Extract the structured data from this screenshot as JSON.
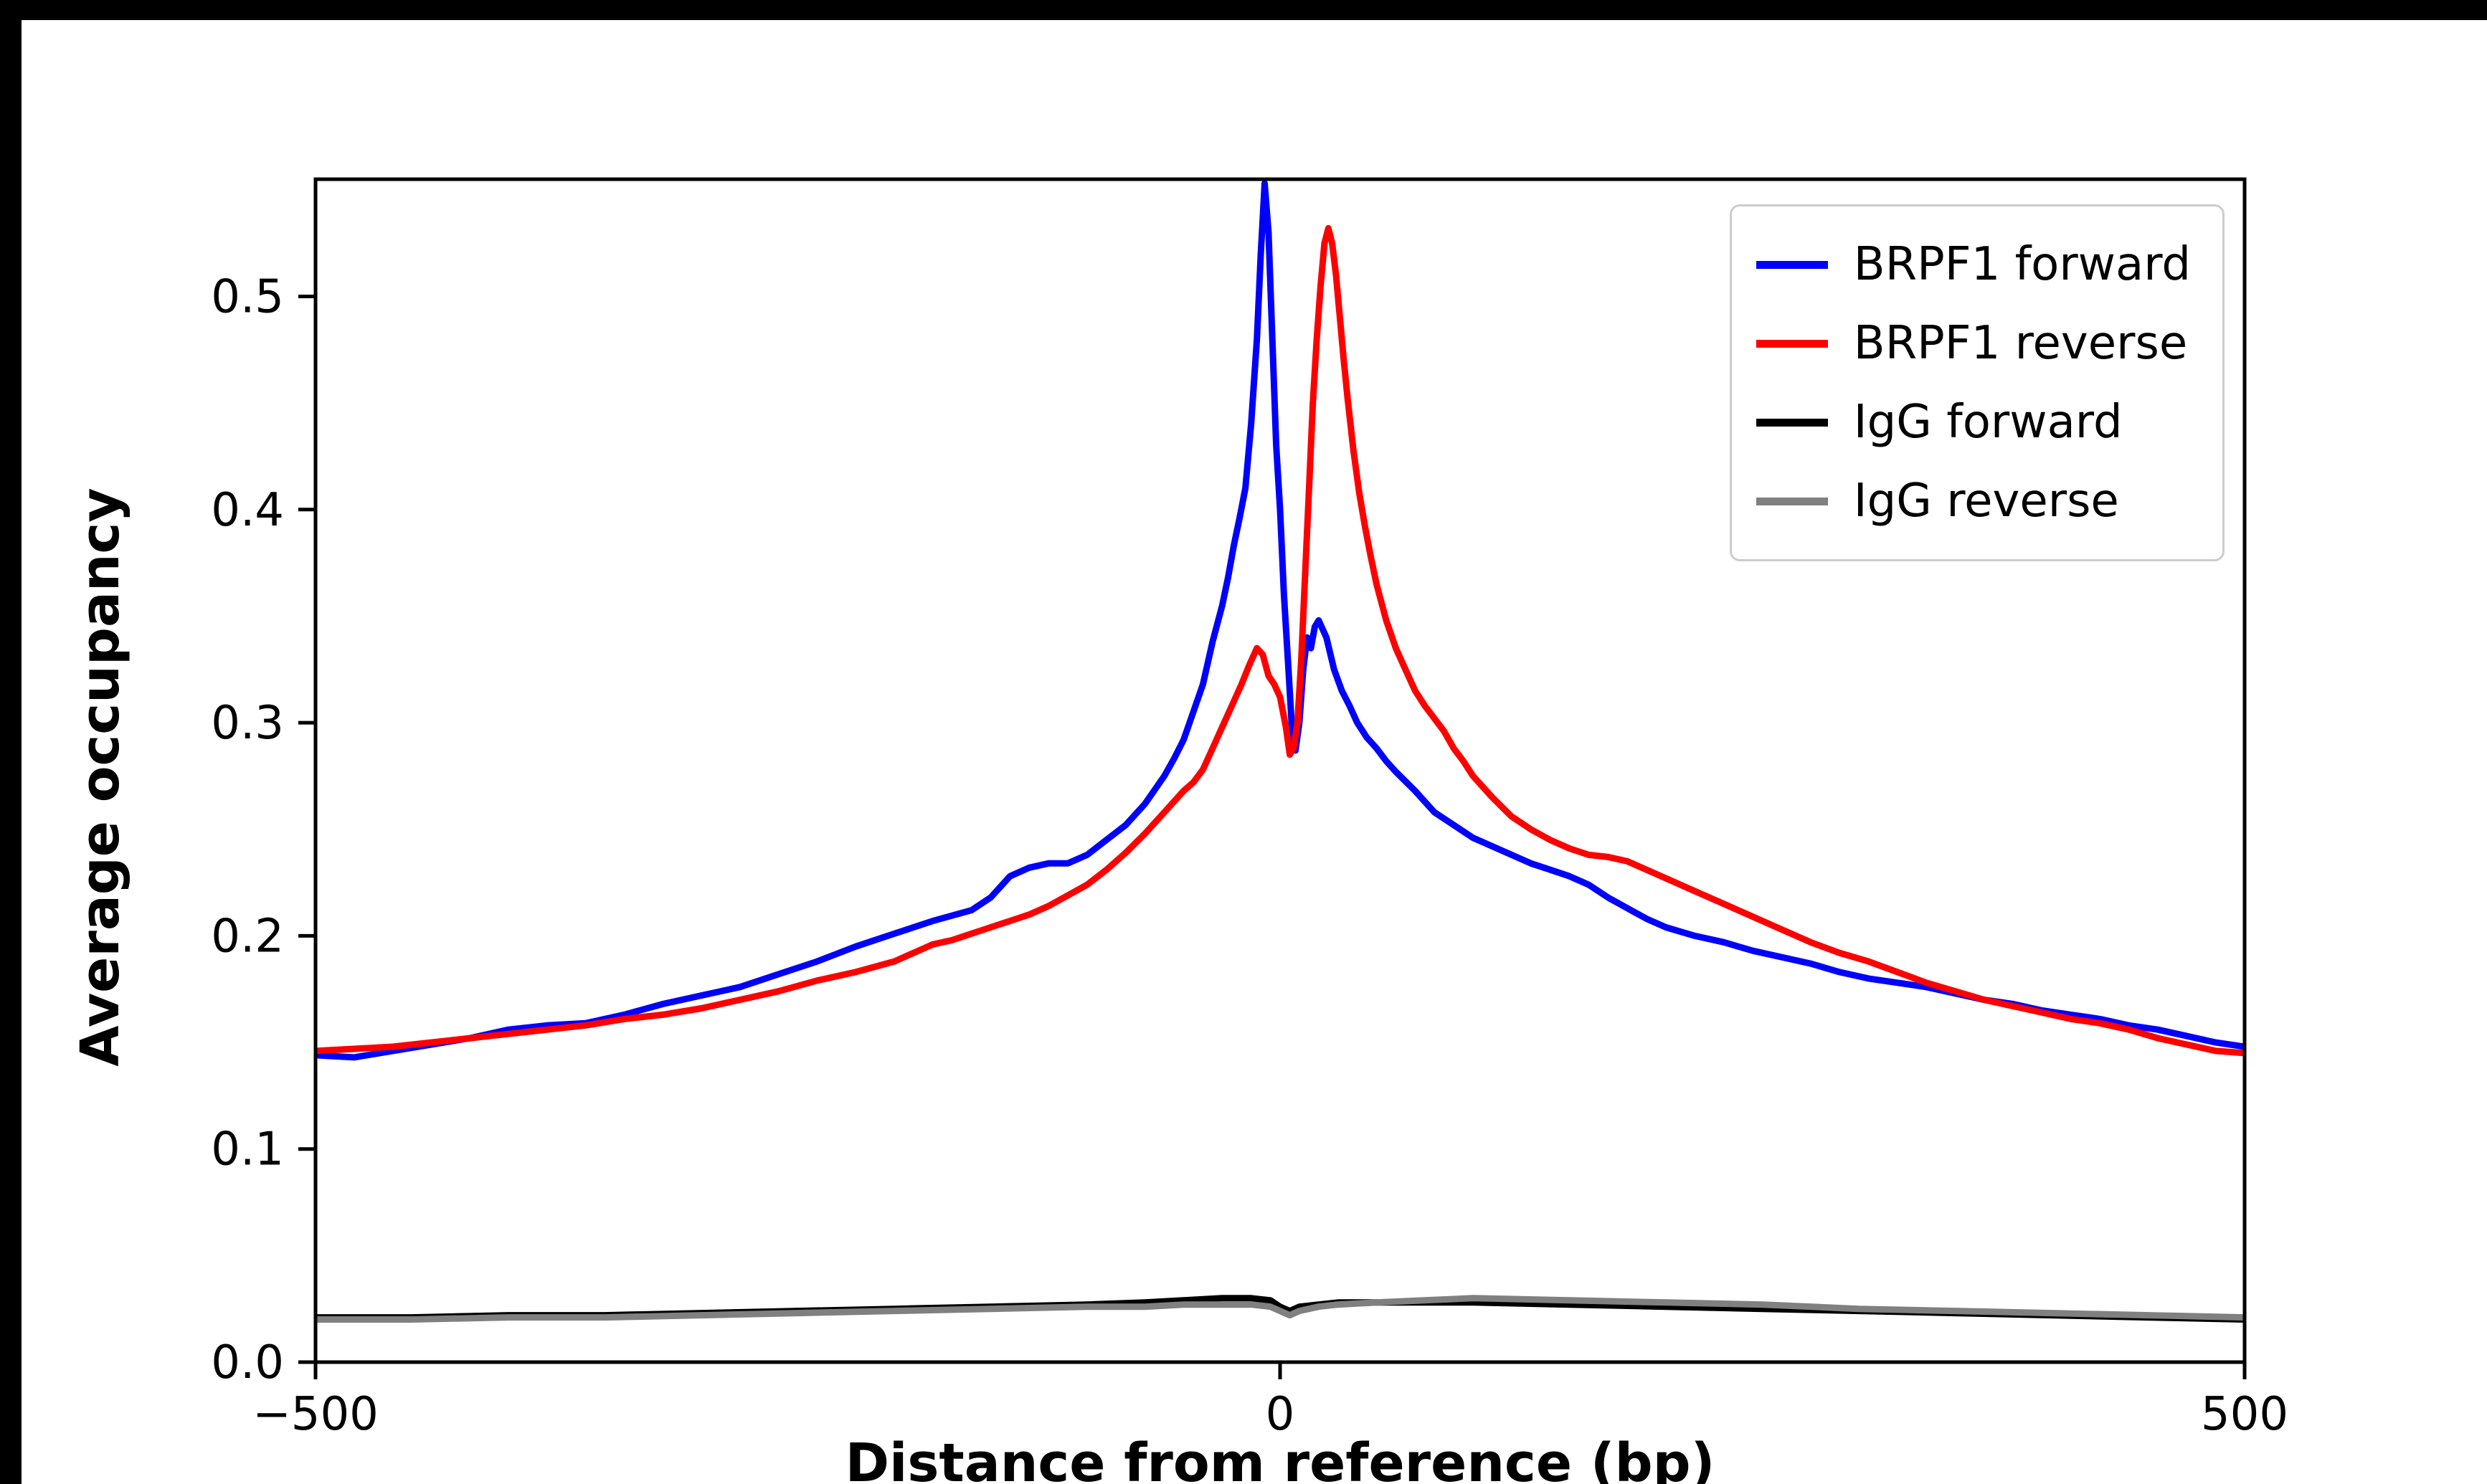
{
  "frame": {
    "top_bar_color": "#000000",
    "left_bar_color": "#000000",
    "background_color": "#ffffff"
  },
  "chart_data": {
    "type": "line",
    "title": "",
    "xlabel": "Distance from reference (bp)",
    "ylabel": "Average occupancy",
    "xlim": [
      -500,
      500
    ],
    "ylim": [
      0,
      0.555
    ],
    "grid": false,
    "legend_position": "upper right",
    "legend_border_color": "#cccccc",
    "axis_color": "#000000",
    "xticks": [
      -500,
      0,
      500
    ],
    "xtick_labels": [
      "−500",
      "0",
      "500"
    ],
    "yticks": [
      0.0,
      0.1,
      0.2,
      0.3,
      0.4,
      0.5
    ],
    "ytick_labels": [
      "0.0",
      "0.1",
      "0.2",
      "0.3",
      "0.4",
      "0.5"
    ],
    "series": [
      {
        "name": "BRPF1 forward",
        "color": "#0000ff",
        "points": [
          [
            -500,
            0.144
          ],
          [
            -480,
            0.143
          ],
          [
            -460,
            0.146
          ],
          [
            -440,
            0.149
          ],
          [
            -420,
            0.152
          ],
          [
            -400,
            0.156
          ],
          [
            -380,
            0.158
          ],
          [
            -360,
            0.159
          ],
          [
            -340,
            0.163
          ],
          [
            -320,
            0.168
          ],
          [
            -300,
            0.172
          ],
          [
            -280,
            0.176
          ],
          [
            -260,
            0.182
          ],
          [
            -240,
            0.188
          ],
          [
            -220,
            0.195
          ],
          [
            -200,
            0.201
          ],
          [
            -180,
            0.207
          ],
          [
            -160,
            0.212
          ],
          [
            -150,
            0.218
          ],
          [
            -140,
            0.228
          ],
          [
            -130,
            0.232
          ],
          [
            -120,
            0.234
          ],
          [
            -110,
            0.234
          ],
          [
            -100,
            0.238
          ],
          [
            -90,
            0.245
          ],
          [
            -80,
            0.252
          ],
          [
            -70,
            0.262
          ],
          [
            -60,
            0.275
          ],
          [
            -55,
            0.283
          ],
          [
            -50,
            0.292
          ],
          [
            -45,
            0.305
          ],
          [
            -40,
            0.318
          ],
          [
            -35,
            0.338
          ],
          [
            -30,
            0.355
          ],
          [
            -27,
            0.368
          ],
          [
            -24,
            0.383
          ],
          [
            -21,
            0.396
          ],
          [
            -18,
            0.41
          ],
          [
            -15,
            0.44
          ],
          [
            -12,
            0.48
          ],
          [
            -10,
            0.52
          ],
          [
            -8,
            0.553
          ],
          [
            -6,
            0.53
          ],
          [
            -4,
            0.48
          ],
          [
            -2,
            0.43
          ],
          [
            0,
            0.4
          ],
          [
            2,
            0.36
          ],
          [
            4,
            0.33
          ],
          [
            6,
            0.3
          ],
          [
            8,
            0.287
          ],
          [
            10,
            0.3
          ],
          [
            12,
            0.325
          ],
          [
            14,
            0.34
          ],
          [
            16,
            0.335
          ],
          [
            18,
            0.345
          ],
          [
            20,
            0.348
          ],
          [
            24,
            0.34
          ],
          [
            28,
            0.325
          ],
          [
            32,
            0.315
          ],
          [
            36,
            0.308
          ],
          [
            40,
            0.3
          ],
          [
            45,
            0.293
          ],
          [
            50,
            0.288
          ],
          [
            55,
            0.282
          ],
          [
            60,
            0.277
          ],
          [
            70,
            0.268
          ],
          [
            80,
            0.258
          ],
          [
            90,
            0.252
          ],
          [
            100,
            0.246
          ],
          [
            110,
            0.242
          ],
          [
            120,
            0.238
          ],
          [
            130,
            0.234
          ],
          [
            140,
            0.231
          ],
          [
            150,
            0.228
          ],
          [
            160,
            0.224
          ],
          [
            170,
            0.218
          ],
          [
            180,
            0.213
          ],
          [
            190,
            0.208
          ],
          [
            200,
            0.204
          ],
          [
            215,
            0.2
          ],
          [
            230,
            0.197
          ],
          [
            245,
            0.193
          ],
          [
            260,
            0.19
          ],
          [
            275,
            0.187
          ],
          [
            290,
            0.183
          ],
          [
            305,
            0.18
          ],
          [
            320,
            0.178
          ],
          [
            335,
            0.176
          ],
          [
            350,
            0.173
          ],
          [
            365,
            0.17
          ],
          [
            380,
            0.168
          ],
          [
            395,
            0.165
          ],
          [
            410,
            0.163
          ],
          [
            425,
            0.161
          ],
          [
            440,
            0.158
          ],
          [
            455,
            0.156
          ],
          [
            470,
            0.153
          ],
          [
            485,
            0.15
          ],
          [
            500,
            0.148
          ]
        ]
      },
      {
        "name": "BRPF1 reverse",
        "color": "#ff0000",
        "points": [
          [
            -500,
            0.146
          ],
          [
            -480,
            0.147
          ],
          [
            -460,
            0.148
          ],
          [
            -440,
            0.15
          ],
          [
            -420,
            0.152
          ],
          [
            -400,
            0.154
          ],
          [
            -380,
            0.156
          ],
          [
            -360,
            0.158
          ],
          [
            -340,
            0.161
          ],
          [
            -320,
            0.163
          ],
          [
            -300,
            0.166
          ],
          [
            -280,
            0.17
          ],
          [
            -260,
            0.174
          ],
          [
            -240,
            0.179
          ],
          [
            -220,
            0.183
          ],
          [
            -200,
            0.188
          ],
          [
            -190,
            0.192
          ],
          [
            -180,
            0.196
          ],
          [
            -170,
            0.198
          ],
          [
            -160,
            0.201
          ],
          [
            -150,
            0.204
          ],
          [
            -140,
            0.207
          ],
          [
            -130,
            0.21
          ],
          [
            -120,
            0.214
          ],
          [
            -110,
            0.219
          ],
          [
            -100,
            0.224
          ],
          [
            -90,
            0.231
          ],
          [
            -80,
            0.239
          ],
          [
            -70,
            0.248
          ],
          [
            -60,
            0.258
          ],
          [
            -50,
            0.268
          ],
          [
            -45,
            0.272
          ],
          [
            -40,
            0.278
          ],
          [
            -35,
            0.288
          ],
          [
            -30,
            0.298
          ],
          [
            -25,
            0.308
          ],
          [
            -20,
            0.318
          ],
          [
            -16,
            0.327
          ],
          [
            -12,
            0.335
          ],
          [
            -9,
            0.332
          ],
          [
            -6,
            0.322
          ],
          [
            -3,
            0.318
          ],
          [
            0,
            0.312
          ],
          [
            3,
            0.298
          ],
          [
            5,
            0.285
          ],
          [
            7,
            0.288
          ],
          [
            9,
            0.3
          ],
          [
            11,
            0.33
          ],
          [
            13,
            0.37
          ],
          [
            15,
            0.41
          ],
          [
            17,
            0.45
          ],
          [
            19,
            0.48
          ],
          [
            21,
            0.505
          ],
          [
            23,
            0.525
          ],
          [
            25,
            0.532
          ],
          [
            27,
            0.525
          ],
          [
            29,
            0.51
          ],
          [
            31,
            0.49
          ],
          [
            33,
            0.47
          ],
          [
            35,
            0.452
          ],
          [
            38,
            0.428
          ],
          [
            41,
            0.408
          ],
          [
            44,
            0.392
          ],
          [
            47,
            0.378
          ],
          [
            50,
            0.365
          ],
          [
            55,
            0.348
          ],
          [
            60,
            0.335
          ],
          [
            65,
            0.325
          ],
          [
            70,
            0.315
          ],
          [
            75,
            0.308
          ],
          [
            80,
            0.302
          ],
          [
            85,
            0.296
          ],
          [
            90,
            0.288
          ],
          [
            95,
            0.282
          ],
          [
            100,
            0.275
          ],
          [
            110,
            0.265
          ],
          [
            120,
            0.256
          ],
          [
            130,
            0.25
          ],
          [
            140,
            0.245
          ],
          [
            150,
            0.241
          ],
          [
            160,
            0.238
          ],
          [
            170,
            0.237
          ],
          [
            180,
            0.235
          ],
          [
            190,
            0.231
          ],
          [
            200,
            0.227
          ],
          [
            215,
            0.221
          ],
          [
            230,
            0.215
          ],
          [
            245,
            0.209
          ],
          [
            260,
            0.203
          ],
          [
            275,
            0.197
          ],
          [
            290,
            0.192
          ],
          [
            305,
            0.188
          ],
          [
            320,
            0.183
          ],
          [
            335,
            0.178
          ],
          [
            350,
            0.174
          ],
          [
            365,
            0.17
          ],
          [
            380,
            0.167
          ],
          [
            395,
            0.164
          ],
          [
            410,
            0.161
          ],
          [
            425,
            0.159
          ],
          [
            440,
            0.156
          ],
          [
            455,
            0.152
          ],
          [
            470,
            0.149
          ],
          [
            485,
            0.146
          ],
          [
            500,
            0.145
          ]
        ]
      },
      {
        "name": "IgG forward",
        "color": "#000000",
        "points": [
          [
            -500,
            0.021
          ],
          [
            -450,
            0.021
          ],
          [
            -400,
            0.022
          ],
          [
            -350,
            0.022
          ],
          [
            -300,
            0.023
          ],
          [
            -250,
            0.024
          ],
          [
            -200,
            0.025
          ],
          [
            -150,
            0.026
          ],
          [
            -100,
            0.027
          ],
          [
            -70,
            0.028
          ],
          [
            -50,
            0.029
          ],
          [
            -30,
            0.03
          ],
          [
            -15,
            0.03
          ],
          [
            -5,
            0.029
          ],
          [
            0,
            0.026
          ],
          [
            5,
            0.024
          ],
          [
            10,
            0.026
          ],
          [
            20,
            0.027
          ],
          [
            30,
            0.028
          ],
          [
            50,
            0.028
          ],
          [
            75,
            0.028
          ],
          [
            100,
            0.028
          ],
          [
            150,
            0.027
          ],
          [
            200,
            0.026
          ],
          [
            250,
            0.025
          ],
          [
            300,
            0.024
          ],
          [
            350,
            0.023
          ],
          [
            400,
            0.022
          ],
          [
            450,
            0.021
          ],
          [
            500,
            0.02
          ]
        ]
      },
      {
        "name": "IgG reverse",
        "color": "#808080",
        "points": [
          [
            -500,
            0.02
          ],
          [
            -450,
            0.02
          ],
          [
            -400,
            0.021
          ],
          [
            -350,
            0.021
          ],
          [
            -300,
            0.022
          ],
          [
            -250,
            0.023
          ],
          [
            -200,
            0.024
          ],
          [
            -150,
            0.025
          ],
          [
            -100,
            0.026
          ],
          [
            -70,
            0.026
          ],
          [
            -50,
            0.027
          ],
          [
            -30,
            0.027
          ],
          [
            -15,
            0.027
          ],
          [
            -5,
            0.026
          ],
          [
            0,
            0.024
          ],
          [
            5,
            0.022
          ],
          [
            10,
            0.024
          ],
          [
            20,
            0.026
          ],
          [
            30,
            0.027
          ],
          [
            50,
            0.028
          ],
          [
            75,
            0.029
          ],
          [
            100,
            0.03
          ],
          [
            150,
            0.029
          ],
          [
            200,
            0.028
          ],
          [
            250,
            0.027
          ],
          [
            300,
            0.025
          ],
          [
            350,
            0.024
          ],
          [
            400,
            0.023
          ],
          [
            450,
            0.022
          ],
          [
            500,
            0.021
          ]
        ]
      }
    ]
  }
}
